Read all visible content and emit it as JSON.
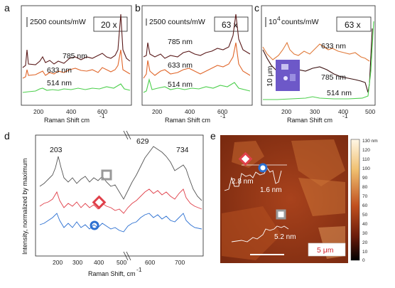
{
  "panels": {
    "a": {
      "letter": "a",
      "scale_label": "2500 counts/mW",
      "magnification": "20 x",
      "curve_labels": [
        "785 nm",
        "633 nm",
        "514 nm"
      ],
      "ticks": [
        "200",
        "400",
        "600"
      ],
      "xlabel": "Raman Shift  cm",
      "xlabel_sup": "-1"
    },
    "b": {
      "letter": "b",
      "scale_label": "2500 counts/mW",
      "magnification": "63 x",
      "curve_labels": [
        "785 nm",
        "633 nm",
        "514 nm"
      ],
      "ticks": [
        "200",
        "400",
        "600"
      ],
      "xlabel": "Raman Shift  cm",
      "xlabel_sup": "-1"
    },
    "c": {
      "letter": "c",
      "scale_label": "10",
      "scale_sup": "4",
      "scale_suffix": "counts/mW",
      "magnification": "63 x",
      "curve_labels": [
        "633 nm",
        "785 nm",
        "514 nm"
      ],
      "ticks": [
        "200",
        "300",
        "400",
        "500"
      ],
      "xlabel": "Raman Shift  cm",
      "xlabel_sup": "-1",
      "inset_scale": "10 μm"
    },
    "d": {
      "letter": "d",
      "ylabel": "Intensity, normalized by maximum",
      "peak_labels": [
        "203",
        "629",
        "734"
      ],
      "ticks": [
        "200",
        "300",
        "400",
        "500",
        "600",
        "700"
      ],
      "xlabel": "Raman Shift, cm",
      "xlabel_sup": "-1",
      "colors": {
        "gray": "#555555",
        "red": "#e0404a",
        "blue": "#2b6fd1"
      }
    },
    "e": {
      "letter": "e",
      "heights": [
        "2.8 nm",
        "1.6 nm",
        "5.2 nm"
      ],
      "scale_bar": "5 μm",
      "colorbar_ticks": [
        "130 nm",
        "120",
        "110",
        "100",
        "90",
        "80",
        "70",
        "60",
        "50",
        "40",
        "30",
        "20",
        "10",
        "0"
      ]
    }
  }
}
